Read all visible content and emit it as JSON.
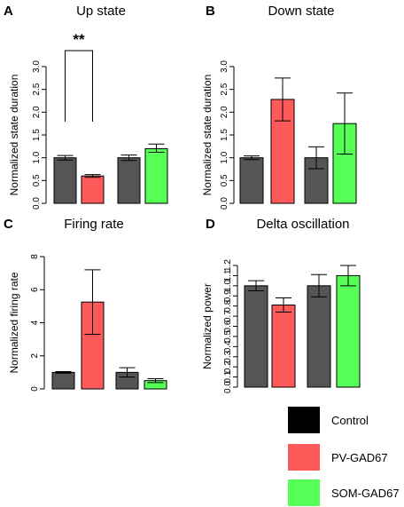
{
  "chart_data": [
    {
      "type": "bar",
      "panel": "A",
      "title": "Up state",
      "ylabel": "Normalized state duration",
      "ylim": [
        0,
        3.0
      ],
      "yticks": [
        "0.0",
        "0.5",
        "1.0",
        "1.5",
        "2.0",
        "2.5",
        "3.0"
      ],
      "groups": [
        {
          "bars": [
            {
              "series": "Control",
              "value": 1.0,
              "err_low": 0.95,
              "err_high": 1.05
            },
            {
              "series": "PV-GAD67",
              "value": 0.6,
              "err_low": 0.57,
              "err_high": 0.63
            }
          ]
        },
        {
          "bars": [
            {
              "series": "Control",
              "value": 1.0,
              "err_low": 0.94,
              "err_high": 1.06
            },
            {
              "series": "SOM-GAD67",
              "value": 1.2,
              "err_low": 1.12,
              "err_high": 1.3
            }
          ]
        }
      ],
      "annotation": "**"
    },
    {
      "type": "bar",
      "panel": "B",
      "title": "Down state",
      "ylabel": "Normalized state duration",
      "ylim": [
        0,
        3.0
      ],
      "yticks": [
        "0.0",
        "0.5",
        "1.0",
        "1.5",
        "2.0",
        "2.5",
        "3.0"
      ],
      "groups": [
        {
          "bars": [
            {
              "series": "Control",
              "value": 1.0,
              "err_low": 0.96,
              "err_high": 1.04
            },
            {
              "series": "PV-GAD67",
              "value": 2.28,
              "err_low": 1.81,
              "err_high": 2.75
            }
          ]
        },
        {
          "bars": [
            {
              "series": "Control",
              "value": 1.0,
              "err_low": 0.76,
              "err_high": 1.24
            },
            {
              "series": "SOM-GAD67",
              "value": 1.75,
              "err_low": 1.08,
              "err_high": 2.42
            }
          ]
        }
      ]
    },
    {
      "type": "bar",
      "panel": "C",
      "title": "Firing rate",
      "ylabel": "Normalized firing rate",
      "ylim": [
        0,
        8
      ],
      "yticks": [
        "0",
        "2",
        "4",
        "6",
        "8"
      ],
      "groups": [
        {
          "bars": [
            {
              "series": "Control",
              "value": 1.0,
              "err_low": 0.95,
              "err_high": 1.05
            },
            {
              "series": "PV-GAD67",
              "value": 5.25,
              "err_low": 3.3,
              "err_high": 7.2
            }
          ]
        },
        {
          "bars": [
            {
              "series": "Control",
              "value": 1.0,
              "err_low": 0.72,
              "err_high": 1.28
            },
            {
              "series": "SOM-GAD67",
              "value": 0.5,
              "err_low": 0.38,
              "err_high": 0.62
            }
          ]
        }
      ]
    },
    {
      "type": "bar",
      "panel": "D",
      "title": "Delta oscillation",
      "ylabel": "Normalized power",
      "ylim": [
        0,
        1.2
      ],
      "yticks": [
        "0.0",
        "0.1",
        "0.2",
        "0.3",
        "0.4",
        "0.5",
        "0.6",
        "0.7",
        "0.8",
        "0.9",
        "1.0",
        "1.1",
        "1.2"
      ],
      "groups": [
        {
          "bars": [
            {
              "series": "Control",
              "value": 1.0,
              "err_low": 0.95,
              "err_high": 1.05
            },
            {
              "series": "PV-GAD67",
              "value": 0.81,
              "err_low": 0.74,
              "err_high": 0.88
            }
          ]
        },
        {
          "bars": [
            {
              "series": "Control",
              "value": 1.0,
              "err_low": 0.89,
              "err_high": 1.11
            },
            {
              "series": "SOM-GAD67",
              "value": 1.1,
              "err_low": 1.0,
              "err_high": 1.2
            }
          ]
        }
      ]
    }
  ],
  "legend": [
    {
      "label": "Control",
      "color": "#000000"
    },
    {
      "label": "PV-GAD67",
      "color": "#ff5a5a"
    },
    {
      "label": "SOM-GAD67",
      "color": "#55ff55"
    }
  ],
  "series_colors": {
    "Control": "#555555",
    "PV-GAD67": "#ff5a5a",
    "SOM-GAD67": "#55ff55"
  }
}
